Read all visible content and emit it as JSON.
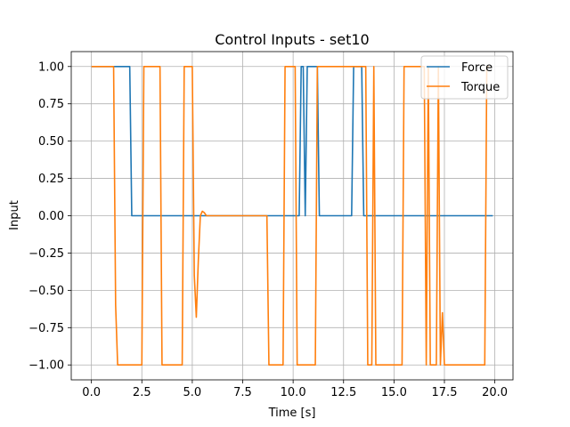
{
  "chart_data": {
    "type": "line",
    "title": "Control Inputs - set10",
    "xlabel": "Time [s]",
    "ylabel": "Input",
    "xlim": [
      -1.0,
      20.9
    ],
    "ylim": [
      -1.1,
      1.1
    ],
    "xticks": [
      0.0,
      2.5,
      5.0,
      7.5,
      10.0,
      12.5,
      15.0,
      17.5,
      20.0
    ],
    "xtick_labels": [
      "0.0",
      "2.5",
      "5.0",
      "7.5",
      "10.0",
      "12.5",
      "15.0",
      "17.5",
      "20.0"
    ],
    "yticks": [
      -1.0,
      -0.75,
      -0.5,
      -0.25,
      0.0,
      0.25,
      0.5,
      0.75,
      1.0
    ],
    "ytick_labels": [
      "−1.00",
      "−0.75",
      "−0.50",
      "−0.25",
      "0.00",
      "0.25",
      "0.50",
      "0.75",
      "1.00"
    ],
    "grid": true,
    "legend_position": "top-right",
    "series": [
      {
        "name": "Force",
        "color": "#1f77b4",
        "points": [
          [
            0.0,
            1.0
          ],
          [
            1.9,
            1.0
          ],
          [
            2.0,
            0.0
          ],
          [
            10.3,
            0.0
          ],
          [
            10.4,
            1.0
          ],
          [
            10.5,
            1.0
          ],
          [
            10.6,
            0.0
          ],
          [
            10.7,
            1.0
          ],
          [
            11.2,
            1.0
          ],
          [
            11.3,
            0.0
          ],
          [
            12.9,
            0.0
          ],
          [
            13.0,
            1.0
          ],
          [
            13.4,
            1.0
          ],
          [
            13.5,
            0.0
          ],
          [
            19.9,
            0.0
          ]
        ]
      },
      {
        "name": "Torque",
        "color": "#ff7f0e",
        "points": [
          [
            0.0,
            1.0
          ],
          [
            1.1,
            1.0
          ],
          [
            1.2,
            -0.6
          ],
          [
            1.3,
            -1.0
          ],
          [
            2.5,
            -1.0
          ],
          [
            2.6,
            1.0
          ],
          [
            3.4,
            1.0
          ],
          [
            3.5,
            -1.0
          ],
          [
            4.5,
            -1.0
          ],
          [
            4.6,
            1.0
          ],
          [
            5.0,
            1.0
          ],
          [
            5.1,
            -0.4
          ],
          [
            5.2,
            -0.68
          ],
          [
            5.3,
            -0.3
          ],
          [
            5.4,
            0.0
          ],
          [
            5.5,
            0.03
          ],
          [
            5.6,
            0.02
          ],
          [
            5.7,
            0.0
          ],
          [
            8.7,
            0.0
          ],
          [
            8.8,
            -1.0
          ],
          [
            9.5,
            -1.0
          ],
          [
            9.6,
            1.0
          ],
          [
            10.1,
            1.0
          ],
          [
            10.2,
            -1.0
          ],
          [
            11.1,
            -1.0
          ],
          [
            11.2,
            1.0
          ],
          [
            13.6,
            1.0
          ],
          [
            13.7,
            -1.0
          ],
          [
            13.9,
            -1.0
          ],
          [
            14.0,
            1.0
          ],
          [
            14.1,
            -1.0
          ],
          [
            15.4,
            -1.0
          ],
          [
            15.5,
            1.0
          ],
          [
            16.5,
            1.0
          ],
          [
            16.6,
            -1.0
          ],
          [
            16.7,
            1.0
          ],
          [
            16.8,
            -1.0
          ],
          [
            17.1,
            -1.0
          ],
          [
            17.2,
            1.0
          ],
          [
            17.3,
            -1.0
          ],
          [
            17.4,
            -0.65
          ],
          [
            17.5,
            -1.0
          ],
          [
            19.5,
            -1.0
          ],
          [
            19.6,
            1.0
          ],
          [
            19.7,
            1.0
          ]
        ]
      }
    ]
  }
}
